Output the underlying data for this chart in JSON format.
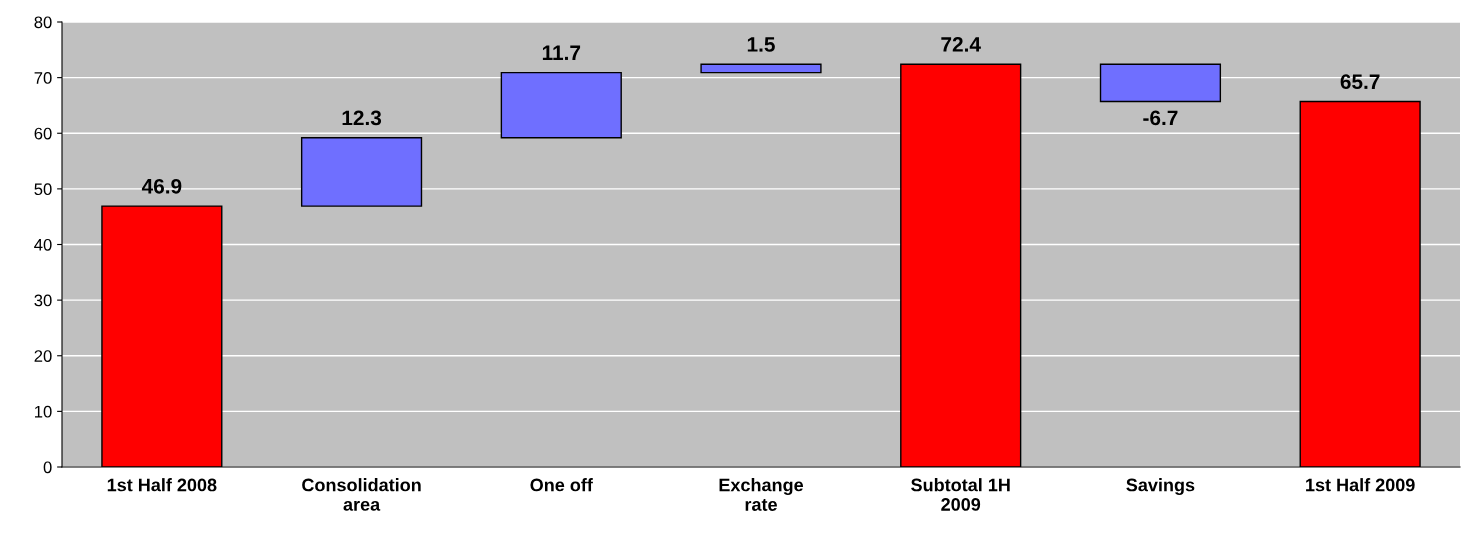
{
  "chart_data": {
    "type": "bar",
    "categories": [
      "1st Half 2008",
      "Consolidation\narea",
      "One off",
      "Exchange\nrate",
      "Subtotal 1H\n2009",
      "Savings",
      "1st Half 2009"
    ],
    "values": [
      46.9,
      12.3,
      11.7,
      1.5,
      72.4,
      -6.7,
      65.7
    ],
    "base": [
      0,
      46.9,
      59.2,
      70.9,
      0,
      72.4,
      0
    ],
    "colors": [
      "#ff0000",
      "#6f6fff",
      "#6f6fff",
      "#6f6fff",
      "#ff0000",
      "#6f6fff",
      "#ff0000"
    ],
    "ylim": [
      0,
      80
    ],
    "yticks": [
      0,
      10,
      20,
      30,
      40,
      50,
      60,
      70,
      80
    ],
    "grid": "y",
    "data_labels": true
  }
}
